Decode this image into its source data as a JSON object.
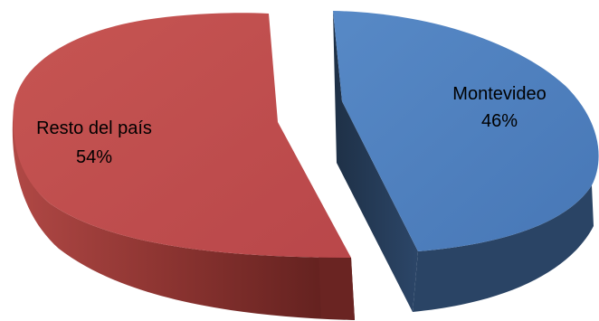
{
  "chart_data": {
    "type": "pie",
    "style": "3d-exploded",
    "slices": [
      {
        "label": "Montevideo",
        "percent_label": "46%",
        "value": 46,
        "color": "#4F81BD",
        "side_color": "#243850"
      },
      {
        "label": "Resto del país",
        "percent_label": "54%",
        "value": 54,
        "color": "#C0504D",
        "side_color": "#7E2A28"
      }
    ],
    "legend": "none"
  }
}
